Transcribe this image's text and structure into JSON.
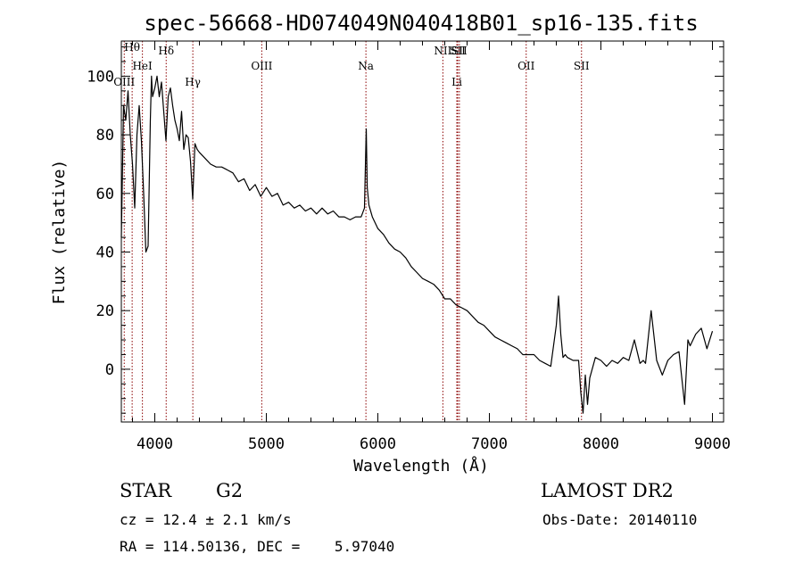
{
  "chart_data": {
    "type": "line",
    "title": "spec-56668-HD074049N040418B01_sp16-135.fits",
    "xlabel": "Wavelength (Å)",
    "ylabel": "Flux (relative)",
    "xlim": [
      3700,
      9100
    ],
    "ylim": [
      -18,
      112
    ],
    "x_ticks": [
      4000,
      5000,
      6000,
      7000,
      8000,
      9000
    ],
    "y_ticks": [
      0,
      20,
      40,
      60,
      80,
      100
    ],
    "grid": false,
    "line_color": "#000000",
    "marker_color": "#8b0000",
    "series": [
      {
        "x": [
          3700,
          3720,
          3740,
          3760,
          3780,
          3800,
          3820,
          3840,
          3860,
          3880,
          3900,
          3920,
          3940,
          3960,
          3970,
          3980,
          4000,
          4020,
          4040,
          4060,
          4080,
          4100,
          4120,
          4140,
          4160,
          4180,
          4200,
          4220,
          4240,
          4260,
          4280,
          4300,
          4320,
          4340,
          4360,
          4380,
          4400,
          4450,
          4500,
          4550,
          4600,
          4650,
          4700,
          4750,
          4800,
          4850,
          4900,
          4950,
          5000,
          5050,
          5100,
          5150,
          5200,
          5250,
          5300,
          5350,
          5400,
          5450,
          5500,
          5550,
          5600,
          5650,
          5700,
          5750,
          5800,
          5850,
          5880,
          5890,
          5896,
          5905,
          5920,
          5950,
          6000,
          6050,
          6100,
          6150,
          6200,
          6250,
          6300,
          6350,
          6400,
          6450,
          6500,
          6550,
          6600,
          6650,
          6700,
          6750,
          6800,
          6850,
          6900,
          6950,
          7000,
          7050,
          7100,
          7150,
          7200,
          7250,
          7300,
          7350,
          7400,
          7450,
          7500,
          7550,
          7600,
          7620,
          7640,
          7660,
          7680,
          7700,
          7750,
          7800,
          7820,
          7840,
          7860,
          7880,
          7900,
          7950,
          8000,
          8050,
          8100,
          8150,
          8200,
          8250,
          8300,
          8350,
          8380,
          8400,
          8450,
          8500,
          8550,
          8600,
          8650,
          8700,
          8750,
          8780,
          8800,
          8850,
          8900,
          8950,
          9000
        ],
        "y": [
          45,
          90,
          85,
          95,
          80,
          70,
          55,
          80,
          90,
          78,
          60,
          40,
          42,
          85,
          100,
          93,
          96,
          100,
          93,
          98,
          88,
          78,
          93,
          96,
          90,
          85,
          82,
          78,
          88,
          75,
          80,
          79,
          71,
          58,
          77,
          75,
          74,
          72,
          70,
          69,
          69,
          68,
          67,
          64,
          65,
          61,
          63,
          59,
          62,
          59,
          60,
          56,
          57,
          55,
          56,
          54,
          55,
          53,
          55,
          53,
          54,
          52,
          52,
          51,
          52,
          52,
          55,
          73,
          82,
          62,
          56,
          52,
          48,
          46,
          43,
          41,
          40,
          38,
          35,
          33,
          31,
          30,
          29,
          27,
          24,
          24,
          22,
          21,
          20,
          18,
          16,
          15,
          13,
          11,
          10,
          9,
          8,
          7,
          5,
          5,
          5,
          3,
          2,
          1,
          15,
          25,
          12,
          4,
          5,
          4,
          3,
          3,
          -8,
          -15,
          -2,
          -12,
          -3,
          4,
          3,
          1,
          3,
          2,
          4,
          3,
          10,
          2,
          3,
          2,
          20,
          3,
          -2,
          3,
          5,
          6,
          -12,
          10,
          8,
          12,
          14,
          7,
          13
        ]
      }
    ],
    "line_markers": [
      {
        "label": "Hθ",
        "x": 3797
      },
      {
        "label": "OIII",
        "x": 3726
      },
      {
        "label": "HeI",
        "x": 3889
      },
      {
        "label": "Hδ",
        "x": 4102
      },
      {
        "label": "Hγ",
        "x": 4341
      },
      {
        "label": "OIII",
        "x": 4959
      },
      {
        "label": "Na",
        "x": 5893
      },
      {
        "label": "NII",
        "x": 6583
      },
      {
        "label": "SII",
        "x": 6716
      },
      {
        "label": "Li",
        "x": 6708
      },
      {
        "label": "SII",
        "x": 6731
      },
      {
        "label": "OII",
        "x": 7330
      },
      {
        "label": "SII",
        "x": 7826
      }
    ]
  },
  "info": {
    "obj_class": "STAR",
    "subclass": "G2",
    "survey": "LAMOST DR2",
    "cz": "cz = 12.4 ± 2.1 km/s",
    "obs_date": "Obs-Date: 20140110",
    "radec": "RA = 114.50136, DEC =    5.97040"
  }
}
